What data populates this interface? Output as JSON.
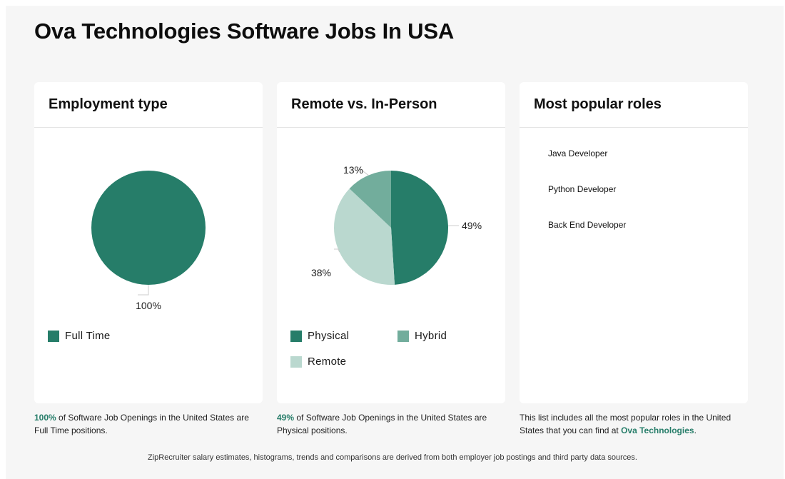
{
  "page": {
    "title": "Ova Technologies Software Jobs In USA"
  },
  "cards": {
    "employment": {
      "title": "Employment type",
      "legend": [
        {
          "label": "Full Time",
          "color": "#267d69"
        }
      ],
      "caption": {
        "highlight": "100%",
        "text": " of Software Job Openings in the United States are Full Time positions."
      }
    },
    "remote": {
      "title": "Remote vs. In-Person",
      "legend": [
        {
          "label": "Physical",
          "color": "#267d69"
        },
        {
          "label": "Hybrid",
          "color": "#72ad9c"
        },
        {
          "label": "Remote",
          "color": "#bad8cf"
        }
      ],
      "caption": {
        "highlight": "49%",
        "text": " of Software Job Openings in the United States are Physical positions."
      }
    },
    "roles": {
      "title": "Most popular roles",
      "items": [
        "Java Developer",
        "Python Developer",
        "Back End Developer"
      ],
      "caption": {
        "text_before": "This list includes all the most popular roles in the United States that you can find at ",
        "link": "Ova Technologies",
        "text_after": "."
      }
    }
  },
  "footer": "ZipRecruiter salary estimates, histograms, trends and comparisons are derived from both employer job postings and third party data sources.",
  "chart_data": [
    {
      "type": "pie",
      "title": "Employment type",
      "categories": [
        "Full Time"
      ],
      "values": [
        100
      ],
      "labels": [
        "100%"
      ],
      "colors": [
        "#267d69"
      ],
      "legend": "bottom"
    },
    {
      "type": "pie",
      "title": "Remote vs. In-Person",
      "categories": [
        "Physical",
        "Remote",
        "Hybrid"
      ],
      "values": [
        49,
        38,
        13
      ],
      "labels": [
        "49%",
        "38%",
        "13%"
      ],
      "colors": [
        "#267d69",
        "#bad8cf",
        "#72ad9c"
      ],
      "legend": "bottom"
    }
  ]
}
